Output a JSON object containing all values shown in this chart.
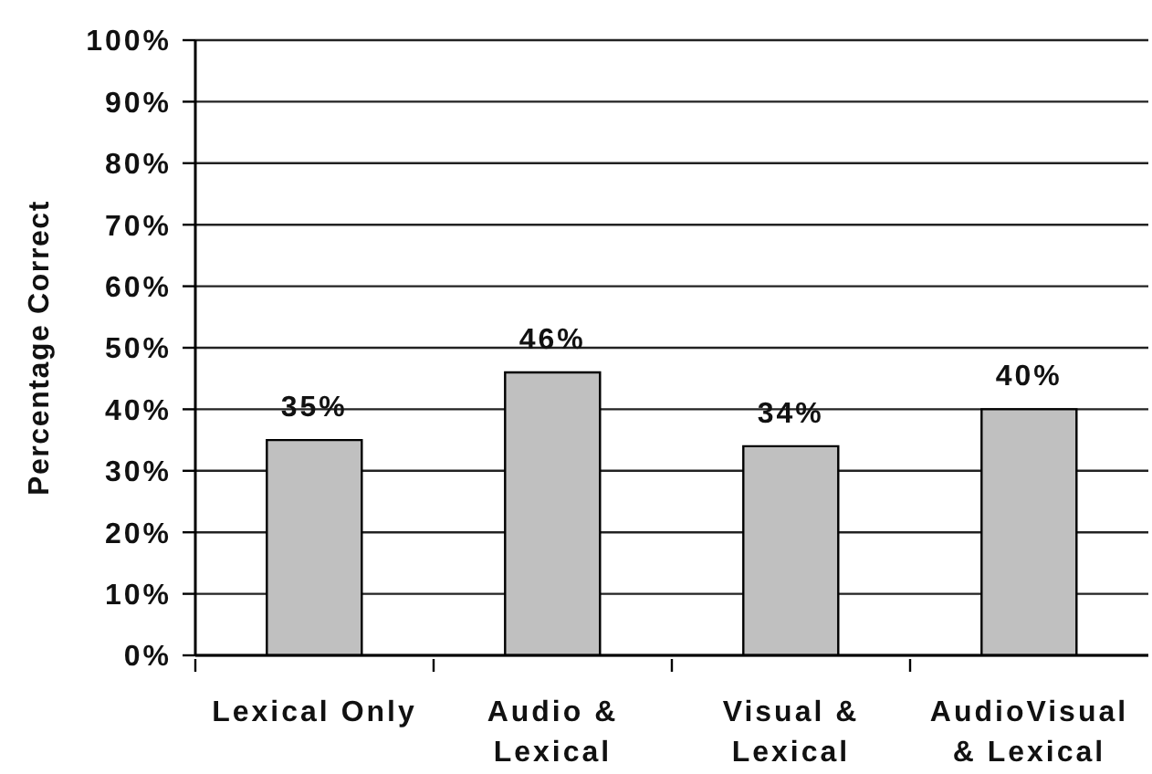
{
  "chart_data": {
    "type": "bar",
    "ylabel": "Percentage Correct",
    "categories": [
      "Lexical Only",
      "Audio & Lexical",
      "Visual & Lexical",
      "AudioVisual & Lexical"
    ],
    "values": [
      35,
      46,
      34,
      40
    ],
    "value_labels": [
      "35%",
      "46%",
      "34%",
      "40%"
    ],
    "color": "#c0c0c0",
    "ylim": [
      0,
      100
    ],
    "yticks": [
      {
        "value": 0,
        "label": "0%"
      },
      {
        "value": 10,
        "label": "10%"
      },
      {
        "value": 20,
        "label": "20%"
      },
      {
        "value": 30,
        "label": "30%"
      },
      {
        "value": 40,
        "label": "40%"
      },
      {
        "value": 50,
        "label": "50%"
      },
      {
        "value": 60,
        "label": "60%"
      },
      {
        "value": 70,
        "label": "70%"
      },
      {
        "value": 80,
        "label": "80%"
      },
      {
        "value": 90,
        "label": "90%"
      },
      {
        "value": 100,
        "label": "100%"
      }
    ],
    "grid": "y"
  }
}
